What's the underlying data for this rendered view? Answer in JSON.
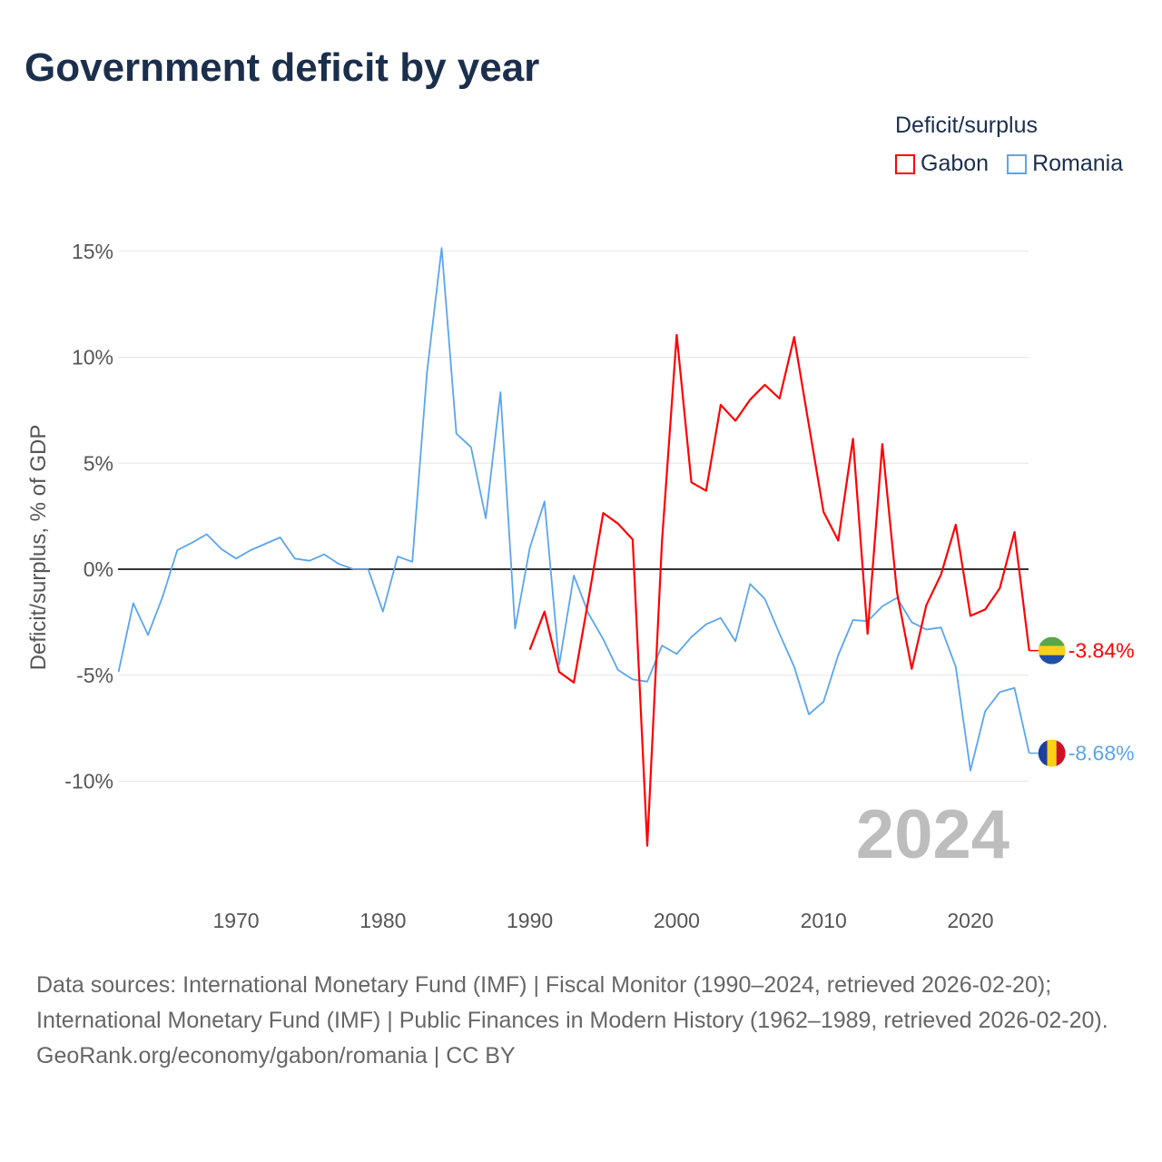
{
  "title": "Government deficit by year",
  "legend": {
    "title": "Deficit/surplus",
    "items": [
      {
        "label": "Gabon",
        "color": "#ff0000"
      },
      {
        "label": "Romania",
        "color": "#5aa5ef"
      }
    ]
  },
  "chart_data": {
    "type": "line",
    "title": "Government deficit by year",
    "xlabel": "",
    "ylabel": "Deficit/surplus, % of GDP",
    "xlim": [
      1962,
      2024
    ],
    "ylim": [
      -13.5,
      15.5
    ],
    "x_ticks": [
      1970,
      1980,
      1990,
      2000,
      2010,
      2020
    ],
    "y_ticks": [
      15,
      10,
      5,
      0,
      -5,
      -10
    ],
    "y_tick_labels": [
      "15%",
      "10%",
      "5%",
      "0%",
      "-5%",
      "-10%"
    ],
    "year_label": "2024",
    "series": [
      {
        "name": "Gabon",
        "color": "#ff0000",
        "end_label": "-3.84%",
        "flag": "gabon-flag",
        "x": [
          1990,
          1991,
          1992,
          1993,
          1994,
          1995,
          1996,
          1997,
          1998,
          1999,
          2000,
          2001,
          2002,
          2003,
          2004,
          2005,
          2006,
          2007,
          2008,
          2009,
          2010,
          2011,
          2012,
          2013,
          2014,
          2015,
          2016,
          2017,
          2018,
          2019,
          2020,
          2021,
          2022,
          2023,
          2024
        ],
        "values": [
          -3.8,
          -2.0,
          -4.85,
          -5.35,
          -1.4,
          2.65,
          2.15,
          1.4,
          -13.05,
          1.3,
          11.05,
          4.1,
          3.7,
          7.75,
          7.0,
          8.0,
          8.7,
          8.05,
          10.95,
          6.8,
          2.7,
          1.35,
          6.15,
          -3.05,
          5.9,
          -1.1,
          -4.7,
          -1.7,
          -0.25,
          2.1,
          -2.2,
          -1.9,
          -0.9,
          1.75,
          -3.84
        ]
      },
      {
        "name": "Romania",
        "color": "#5aa5ef",
        "end_label": "-8.68%",
        "flag": "romania-flag",
        "x": [
          1962,
          1963,
          1964,
          1965,
          1966,
          1967,
          1968,
          1969,
          1970,
          1971,
          1972,
          1973,
          1974,
          1975,
          1976,
          1977,
          1978,
          1979,
          1980,
          1981,
          1982,
          1983,
          1984,
          1985,
          1986,
          1987,
          1988,
          1989,
          1990,
          1991,
          1992,
          1993,
          1994,
          1995,
          1996,
          1997,
          1998,
          1999,
          2000,
          2001,
          2002,
          2003,
          2004,
          2005,
          2006,
          2007,
          2008,
          2009,
          2010,
          2011,
          2012,
          2013,
          2014,
          2015,
          2016,
          2017,
          2018,
          2019,
          2020,
          2021,
          2022,
          2023,
          2024
        ],
        "values": [
          -4.84,
          -1.6,
          -3.1,
          -1.3,
          0.9,
          1.25,
          1.65,
          0.95,
          0.5,
          0.9,
          1.2,
          1.5,
          0.5,
          0.4,
          0.7,
          0.25,
          0,
          0,
          -2.0,
          0.6,
          0.35,
          9.3,
          15.15,
          6.4,
          5.75,
          2.4,
          8.35,
          -2.8,
          1.0,
          3.2,
          -4.5,
          -0.3,
          -2.1,
          -3.3,
          -4.75,
          -5.2,
          -5.3,
          -3.6,
          -4.0,
          -3.2,
          -2.6,
          -2.3,
          -3.4,
          -0.7,
          -1.4,
          -3.05,
          -4.6,
          -6.85,
          -6.25,
          -4.05,
          -2.4,
          -2.45,
          -1.75,
          -1.35,
          -2.5,
          -2.85,
          -2.75,
          -4.6,
          -9.5,
          -6.7,
          -5.8,
          -5.6,
          -8.68
        ]
      }
    ]
  },
  "footer": {
    "sources": "Data sources: International Monetary Fund (IMF) | Fiscal Monitor (1990–2024, retrieved 2026-02-20); International Monetary Fund (IMF) | Public Finances in Modern History (1962–1989, retrieved 2026-02-20).",
    "credit": "GeoRank.org/economy/gabon/romania | CC BY"
  }
}
